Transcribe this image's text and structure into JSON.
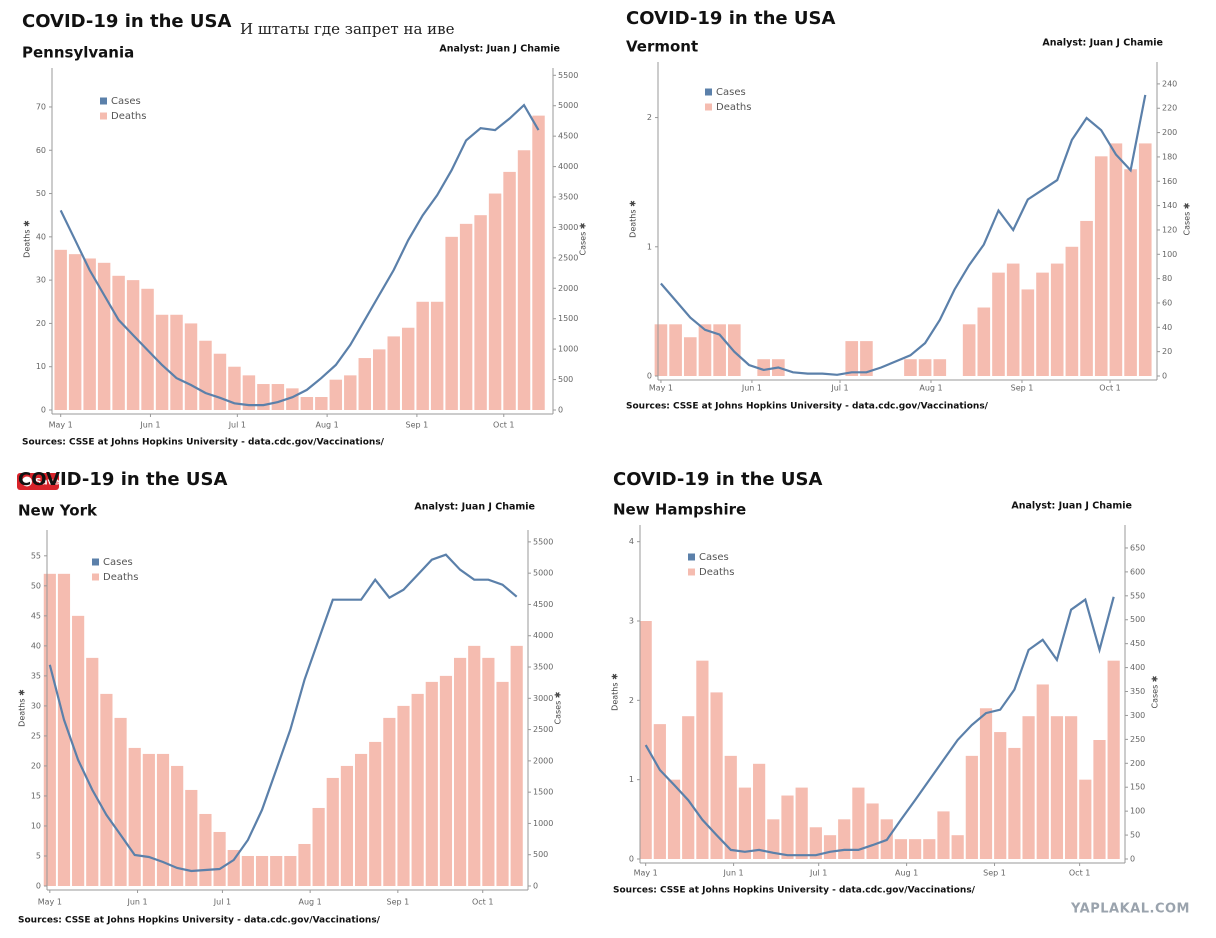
{
  "caption": "И штаты где запрет на иве",
  "save_button": "Save",
  "watermark": "YAPLAKAL.COM",
  "chart_data": [
    {
      "type": "bar_line",
      "title": "COVID-19 in the USA",
      "subtitle": "Pennsylvania",
      "analyst": "Analyst: Juan J Chamie",
      "source": "Sources: CSSE at Johns Hopkins University - data.cdc.gov/Vaccinations/",
      "y_label": "Deaths ✱",
      "y2_label": "Cases ✱",
      "x": [
        0,
        5,
        10,
        15,
        20,
        25,
        30,
        35,
        40,
        45,
        50,
        55,
        60,
        65,
        70,
        75,
        80,
        85,
        90,
        95,
        100,
        105,
        110,
        115,
        120,
        125,
        130,
        135,
        140,
        145,
        150,
        155,
        160,
        165
      ],
      "xlim": [
        -3,
        170
      ],
      "xticks": [
        {
          "value": 0,
          "label": "May 1"
        },
        {
          "value": 31,
          "label": "Jun 1"
        },
        {
          "value": 61,
          "label": "Jul 1"
        },
        {
          "value": 92,
          "label": "Aug 1"
        },
        {
          "value": 123,
          "label": "Sep 1"
        },
        {
          "value": 153,
          "label": "Oct 1"
        }
      ],
      "ylim": [
        0,
        79
      ],
      "yticks": [
        0,
        10,
        20,
        30,
        40,
        50,
        60,
        70
      ],
      "y2lim": [
        0,
        5620
      ],
      "y2ticks": [
        0,
        500,
        1000,
        1500,
        2000,
        2500,
        3000,
        3500,
        4000,
        4500,
        5000,
        5500
      ],
      "series": [
        {
          "name": "Cases",
          "color": "#5b80aa",
          "axis": "y2",
          "values": [
            3280,
            2790,
            2300,
            1890,
            1480,
            1230,
            985,
            740,
            525,
            410,
            280,
            200,
            110,
            80,
            80,
            130,
            210,
            330,
            525,
            740,
            1070,
            1480,
            1890,
            2300,
            2790,
            3200,
            3530,
            3940,
            4430,
            4630,
            4600,
            4790,
            5010,
            4600
          ]
        },
        {
          "name": "Deaths",
          "color": "#f5bcb0",
          "values": [
            37,
            36,
            35,
            34,
            31,
            30,
            28,
            22,
            22,
            20,
            16,
            13,
            10,
            8,
            6,
            6,
            5,
            3,
            3,
            7,
            8,
            12,
            14,
            17,
            19,
            25,
            25,
            40,
            43,
            45,
            50,
            55,
            60,
            68
          ]
        }
      ]
    },
    {
      "type": "bar_line",
      "title": "COVID-19 in the USA",
      "subtitle": "Vermont",
      "analyst": "Analyst: Juan J Chamie",
      "source": "Sources: CSSE at Johns Hopkins University - data.cdc.gov/Vaccinations/",
      "y_label": "Deaths ✱",
      "y2_label": "Cases ✱",
      "x": [
        0,
        5,
        10,
        15,
        20,
        25,
        30,
        35,
        40,
        45,
        50,
        55,
        60,
        65,
        70,
        75,
        80,
        85,
        90,
        95,
        100,
        105,
        110,
        115,
        120,
        125,
        130,
        135,
        140,
        145,
        150,
        155,
        160,
        165
      ],
      "xlim": [
        -1,
        169
      ],
      "xticks": [
        {
          "value": 0,
          "label": "May 1"
        },
        {
          "value": 31,
          "label": "Jun 1"
        },
        {
          "value": 61,
          "label": "Jul 1"
        },
        {
          "value": 92,
          "label": "Aug 1"
        },
        {
          "value": 123,
          "label": "Sep 1"
        },
        {
          "value": 153,
          "label": "Oct 1"
        }
      ],
      "ylim": [
        0,
        2.43
      ],
      "yticks": [
        0,
        1,
        2
      ],
      "y2lim": [
        0,
        258
      ],
      "y2ticks": [
        0,
        20,
        40,
        60,
        80,
        100,
        120,
        140,
        160,
        180,
        200,
        220,
        240
      ],
      "series": [
        {
          "name": "Cases",
          "color": "#5b80aa",
          "axis": "y2",
          "values": [
            76,
            62,
            48,
            38,
            34,
            20,
            9,
            5,
            7,
            3,
            2,
            2,
            1,
            3,
            3,
            7,
            12,
            17,
            27,
            46,
            71,
            91,
            108,
            136,
            120,
            145,
            153,
            161,
            194,
            212,
            202,
            182,
            169,
            231
          ]
        },
        {
          "name": "Deaths",
          "color": "#f5bcb0",
          "values": [
            0.4,
            0.4,
            0.3,
            0.4,
            0.4,
            0.4,
            0,
            0.13,
            0.13,
            0,
            0,
            0,
            0,
            0.27,
            0.27,
            0,
            0,
            0.13,
            0.13,
            0.13,
            0,
            0.4,
            0.53,
            0.8,
            0.87,
            0.67,
            0.8,
            0.87,
            1.0,
            1.2,
            1.7,
            1.8,
            1.6,
            1.8
          ]
        }
      ]
    },
    {
      "type": "bar_line",
      "title": "COVID-19 in the USA",
      "subtitle": "New York",
      "analyst": "Analyst: Juan J Chamie",
      "source": "Sources: CSSE at Johns Hopkins University - data.cdc.gov/Vaccinations/",
      "y_label": "Deaths ✱",
      "y2_label": "Cases ✱",
      "x": [
        0,
        5,
        10,
        15,
        20,
        25,
        30,
        35,
        40,
        45,
        50,
        55,
        60,
        65,
        70,
        75,
        80,
        85,
        90,
        95,
        100,
        105,
        110,
        115,
        120,
        125,
        130,
        135,
        140,
        145,
        150,
        155,
        160,
        165
      ],
      "xlim": [
        -1,
        169
      ],
      "xticks": [
        {
          "value": 0,
          "label": "May 1"
        },
        {
          "value": 31,
          "label": "Jun 1"
        },
        {
          "value": 61,
          "label": "Jul 1"
        },
        {
          "value": 92,
          "label": "Aug 1"
        },
        {
          "value": 123,
          "label": "Sep 1"
        },
        {
          "value": 153,
          "label": "Oct 1"
        }
      ],
      "ylim": [
        0,
        59.3
      ],
      "yticks": [
        0,
        5,
        10,
        15,
        20,
        25,
        30,
        35,
        40,
        45,
        50,
        55
      ],
      "y2lim": [
        0,
        5690
      ],
      "y2ticks": [
        0,
        500,
        1000,
        1500,
        2000,
        2500,
        3000,
        3500,
        4000,
        4500,
        5000,
        5500
      ],
      "series": [
        {
          "name": "Cases",
          "color": "#5b80aa",
          "axis": "y2",
          "values": [
            3536,
            2656,
            2016,
            1536,
            1136,
            816,
            496,
            464,
            384,
            288,
            240,
            256,
            272,
            416,
            736,
            1216,
            1856,
            2496,
            3296,
            3936,
            4576,
            4576,
            4576,
            4896,
            4608,
            4736,
            4976,
            5216,
            5296,
            5056,
            4896,
            4896,
            4816,
            4624
          ]
        },
        {
          "name": "Deaths",
          "color": "#f5bcb0",
          "values": [
            52,
            52,
            45,
            38,
            32,
            28,
            23,
            22,
            22,
            20,
            16,
            12,
            9,
            6,
            5,
            5,
            5,
            5,
            7,
            13,
            18,
            20,
            22,
            24,
            28,
            30,
            32,
            34,
            35,
            38,
            40,
            38,
            34,
            40
          ]
        }
      ]
    },
    {
      "type": "bar_line",
      "title": "COVID-19 in the USA",
      "subtitle": "New Hampshire",
      "analyst": "Analyst: Juan J Chamie",
      "source": "Sources: CSSE at Johns Hopkins University - data.cdc.gov/Vaccinations/",
      "y_label": "Deaths ✱",
      "y2_label": "Cases ✱",
      "x": [
        0,
        5,
        10,
        15,
        20,
        25,
        30,
        35,
        40,
        45,
        50,
        55,
        60,
        65,
        70,
        75,
        80,
        85,
        90,
        95,
        100,
        105,
        110,
        115,
        120,
        125,
        130,
        135,
        140,
        145,
        150,
        155,
        160,
        165
      ],
      "xlim": [
        -2,
        169
      ],
      "xticks": [
        {
          "value": 0,
          "label": "May 1"
        },
        {
          "value": 31,
          "label": "Jun 1"
        },
        {
          "value": 61,
          "label": "Jul 1"
        },
        {
          "value": 92,
          "label": "Aug 1"
        },
        {
          "value": 123,
          "label": "Sep 1"
        },
        {
          "value": 153,
          "label": "Oct 1"
        }
      ],
      "ylim": [
        0,
        4.21
      ],
      "yticks": [
        0,
        1,
        2,
        3,
        4
      ],
      "y2lim": [
        0,
        698
      ],
      "y2ticks": [
        0,
        50,
        100,
        150,
        200,
        250,
        300,
        350,
        400,
        450,
        500,
        550,
        600,
        650
      ],
      "series": [
        {
          "name": "Cases",
          "color": "#5b80aa",
          "axis": "y2",
          "values": [
            238,
            186,
            155,
            123,
            82,
            50,
            19,
            15,
            19,
            13,
            8,
            8,
            8,
            15,
            19,
            19,
            29,
            40,
            82,
            123,
            165,
            207,
            249,
            280,
            305,
            312,
            354,
            437,
            458,
            416,
            521,
            542,
            437,
            548
          ]
        },
        {
          "name": "Deaths",
          "color": "#f5bcb0",
          "values": [
            3.0,
            1.7,
            1.0,
            1.8,
            2.5,
            2.1,
            1.3,
            0.9,
            1.2,
            0.5,
            0.8,
            0.9,
            0.4,
            0.3,
            0.5,
            0.9,
            0.7,
            0.5,
            0.25,
            0.25,
            0.25,
            0.6,
            0.3,
            1.3,
            1.9,
            1.6,
            1.4,
            1.8,
            2.2,
            1.8,
            1.8,
            1.0,
            1.5,
            2.5
          ]
        }
      ]
    }
  ]
}
